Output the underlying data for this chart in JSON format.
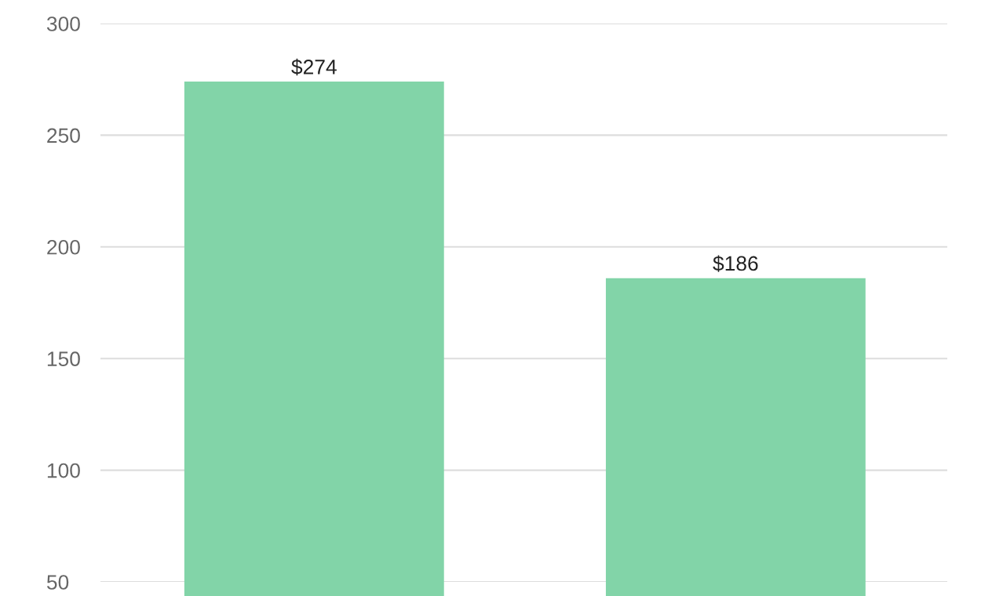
{
  "chart_data": {
    "type": "bar",
    "categories": [
      null,
      null
    ],
    "values": [
      274,
      186
    ],
    "value_labels": [
      "$274",
      "$186"
    ],
    "color": "#82d4a8",
    "ylim": [
      50,
      300
    ],
    "yticks": [
      50,
      100,
      150,
      200,
      250,
      300
    ],
    "grid": "y",
    "tick_labels": "y"
  }
}
